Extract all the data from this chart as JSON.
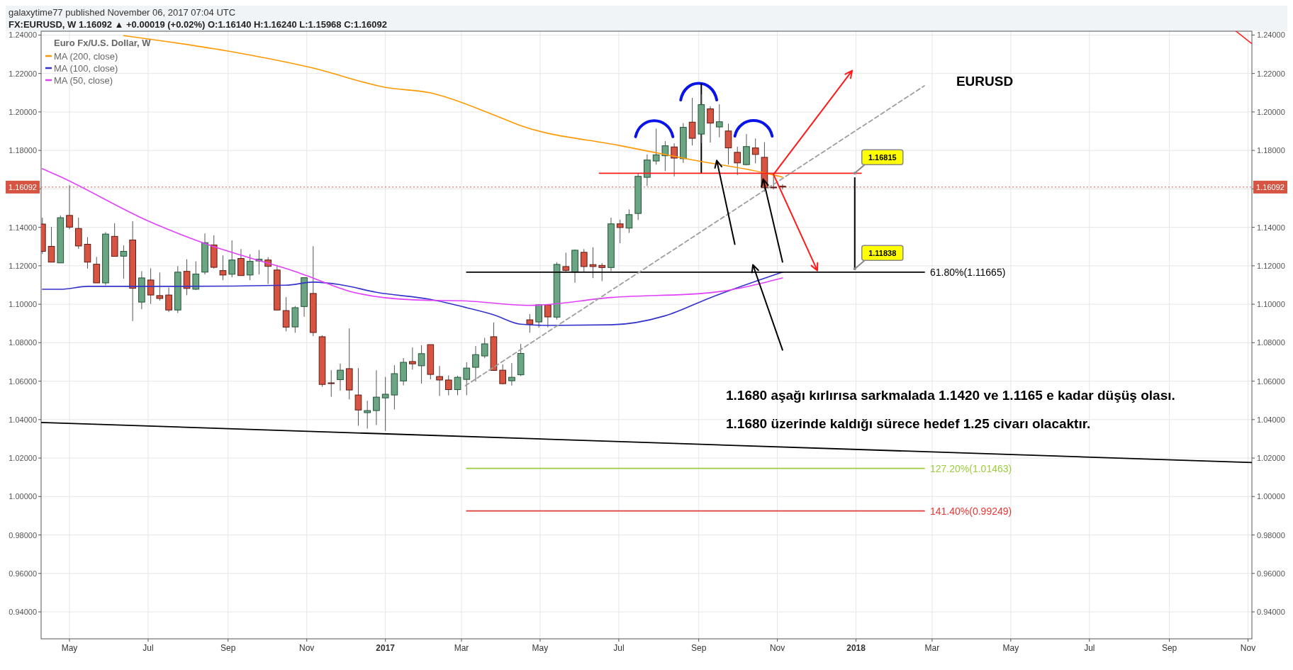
{
  "chart_data": {
    "type": "candlestick",
    "title": "galaxytime77 published November 06, 2017 07:04 UTC",
    "subtitle": "FX:EURUSD, W  1.16092 ▲ +0.00019 (+0.02%)  O:1.16140  H:1.16240  L:1.15968  C:1.16092",
    "legend_title": "Euro Fx/U.S. Dollar, W",
    "x": [
      "2016-04-10",
      "2016-04-17",
      "2016-04-24",
      "2016-05-01",
      "2016-05-08",
      "2016-05-15",
      "2016-05-22",
      "2016-05-29",
      "2016-06-05",
      "2016-06-12",
      "2016-06-19",
      "2016-06-26",
      "2016-07-03",
      "2016-07-10",
      "2016-07-17",
      "2016-07-24",
      "2016-07-31",
      "2016-08-07",
      "2016-08-14",
      "2016-08-21",
      "2016-08-28",
      "2016-09-04",
      "2016-09-11",
      "2016-09-18",
      "2016-09-25",
      "2016-10-02",
      "2016-10-09",
      "2016-10-16",
      "2016-10-23",
      "2016-10-30",
      "2016-11-06",
      "2016-11-13",
      "2016-11-20",
      "2016-11-27",
      "2016-12-04",
      "2016-12-11",
      "2016-12-18",
      "2016-12-25",
      "2017-01-01",
      "2017-01-08",
      "2017-01-15",
      "2017-01-22",
      "2017-01-29",
      "2017-02-05",
      "2017-02-12",
      "2017-02-19",
      "2017-02-26",
      "2017-03-05",
      "2017-03-12",
      "2017-03-19",
      "2017-03-26",
      "2017-04-02",
      "2017-04-09",
      "2017-04-16",
      "2017-04-23",
      "2017-04-30",
      "2017-05-07",
      "2017-05-14",
      "2017-05-21",
      "2017-05-28",
      "2017-06-04",
      "2017-06-11",
      "2017-06-18",
      "2017-06-25",
      "2017-07-02",
      "2017-07-09",
      "2017-07-16",
      "2017-07-23",
      "2017-07-30",
      "2017-08-06",
      "2017-08-13",
      "2017-08-20",
      "2017-08-27",
      "2017-09-03",
      "2017-09-10",
      "2017-09-17",
      "2017-09-24",
      "2017-10-01",
      "2017-10-08",
      "2017-10-15",
      "2017-10-22",
      "2017-10-29",
      "2017-11-05"
    ],
    "ohlc": [
      [
        1.1417,
        1.145,
        1.1262,
        1.1275
      ],
      [
        1.1301,
        1.1402,
        1.1219,
        1.1219
      ],
      [
        1.1215,
        1.1462,
        1.1215,
        1.145
      ],
      [
        1.1462,
        1.1619,
        1.139,
        1.1401
      ],
      [
        1.1394,
        1.145,
        1.1288,
        1.1303
      ],
      [
        1.1312,
        1.1349,
        1.1185,
        1.1219
      ],
      [
        1.1208,
        1.1246,
        1.1111,
        1.1111
      ],
      [
        1.1111,
        1.1375,
        1.1099,
        1.1365
      ],
      [
        1.1353,
        1.1421,
        1.1249,
        1.1249
      ],
      [
        1.125,
        1.1306,
        1.1133,
        1.1275
      ],
      [
        1.1334,
        1.1432,
        1.0913,
        1.1083
      ],
      [
        1.1011,
        1.1172,
        1.0974,
        1.1137
      ],
      [
        1.1126,
        1.1187,
        1.1002,
        1.1048
      ],
      [
        1.1045,
        1.1165,
        1.1019,
        1.103
      ],
      [
        1.1048,
        1.1087,
        1.0959,
        1.097
      ],
      [
        1.097,
        1.1198,
        1.0954,
        1.1167
      ],
      [
        1.1171,
        1.1234,
        1.1047,
        1.1082
      ],
      [
        1.1078,
        1.1223,
        1.1074,
        1.1157
      ],
      [
        1.1167,
        1.1368,
        1.1155,
        1.132
      ],
      [
        1.1308,
        1.1359,
        1.1185,
        1.1192
      ],
      [
        1.1175,
        1.1254,
        1.1125,
        1.1152
      ],
      [
        1.1156,
        1.1332,
        1.114,
        1.123
      ],
      [
        1.1238,
        1.1287,
        1.1149,
        1.1149
      ],
      [
        1.1152,
        1.126,
        1.1125,
        1.1223
      ],
      [
        1.1225,
        1.1282,
        1.1155,
        1.1234
      ],
      [
        1.123,
        1.1245,
        1.1105,
        1.1197
      ],
      [
        1.1178,
        1.1204,
        1.097,
        1.097
      ],
      [
        1.0967,
        1.1037,
        1.0859,
        1.0881
      ],
      [
        1.0882,
        1.0991,
        1.0852,
        1.0982
      ],
      [
        1.0988,
        1.1138,
        1.0935,
        1.1138
      ],
      [
        1.1056,
        1.1302,
        1.0834,
        1.0853
      ],
      [
        1.0831,
        1.0838,
        1.0571,
        1.0583
      ],
      [
        1.0591,
        1.0657,
        1.0519,
        1.059
      ],
      [
        1.0608,
        1.0691,
        1.0551,
        1.0657
      ],
      [
        1.0665,
        1.0874,
        1.0505,
        1.0554
      ],
      [
        1.0528,
        1.0668,
        1.0368,
        1.045
      ],
      [
        1.0436,
        1.0498,
        1.0353,
        1.0447
      ],
      [
        1.0447,
        1.0656,
        1.0372,
        1.0517
      ],
      [
        1.0513,
        1.0622,
        1.0342,
        1.0532
      ],
      [
        1.0528,
        1.0683,
        1.0453,
        1.0639
      ],
      [
        1.0601,
        1.072,
        1.0578,
        1.0698
      ],
      [
        1.0702,
        1.0775,
        1.066,
        1.069
      ],
      [
        1.068,
        1.0787,
        1.0587,
        1.0743
      ],
      [
        1.079,
        1.079,
        1.0609,
        1.0635
      ],
      [
        1.0624,
        1.0679,
        1.0523,
        1.0606
      ],
      [
        1.0606,
        1.063,
        1.0526,
        1.0556
      ],
      [
        1.0556,
        1.0628,
        1.0527,
        1.062
      ],
      [
        1.0609,
        1.0698,
        1.0527,
        1.0668
      ],
      [
        1.0672,
        1.0783,
        1.0598,
        1.0738
      ],
      [
        1.0731,
        1.0825,
        1.072,
        1.0794
      ],
      [
        1.0831,
        1.0905,
        1.0656,
        1.0656
      ],
      [
        1.0657,
        1.0687,
        1.0583,
        1.0587
      ],
      [
        1.0602,
        1.0694,
        1.0577,
        1.062
      ],
      [
        1.0633,
        1.0794,
        1.0626,
        1.0744
      ],
      [
        1.0919,
        1.0949,
        1.0852,
        1.0896
      ],
      [
        1.0908,
        1.1,
        1.0878,
        1.0997
      ],
      [
        1.0997,
        1.1,
        1.088,
        1.0934
      ],
      [
        1.0933,
        1.1218,
        1.092,
        1.1207
      ],
      [
        1.1196,
        1.1268,
        1.117,
        1.1176
      ],
      [
        1.1167,
        1.1285,
        1.1112,
        1.1281
      ],
      [
        1.127,
        1.1287,
        1.117,
        1.1196
      ],
      [
        1.1206,
        1.1296,
        1.1136,
        1.1196
      ],
      [
        1.1202,
        1.1214,
        1.112,
        1.1191
      ],
      [
        1.1191,
        1.145,
        1.1172,
        1.1418
      ],
      [
        1.1418,
        1.144,
        1.1317,
        1.1399
      ],
      [
        1.1396,
        1.1493,
        1.1371,
        1.1466
      ],
      [
        1.1472,
        1.1681,
        1.1438,
        1.1665
      ],
      [
        1.166,
        1.1779,
        1.1615,
        1.175
      ],
      [
        1.1745,
        1.1913,
        1.1726,
        1.1777
      ],
      [
        1.1772,
        1.1848,
        1.1693,
        1.1824
      ],
      [
        1.1818,
        1.1837,
        1.1665,
        1.176
      ],
      [
        1.1757,
        1.1942,
        1.1735,
        1.192
      ],
      [
        1.1947,
        1.2073,
        1.1826,
        1.1863
      ],
      [
        1.1885,
        1.2092,
        1.1838,
        1.2038
      ],
      [
        1.2016,
        1.203,
        1.1841,
        1.1942
      ],
      [
        1.1922,
        1.204,
        1.1868,
        1.1949
      ],
      [
        1.1901,
        1.1939,
        1.1726,
        1.1813
      ],
      [
        1.179,
        1.1819,
        1.1672,
        1.1735
      ],
      [
        1.1726,
        1.1885,
        1.1722,
        1.182
      ],
      [
        1.1813,
        1.1862,
        1.1733,
        1.1779
      ],
      [
        1.1764,
        1.1843,
        1.1585,
        1.1606
      ],
      [
        1.1609,
        1.1669,
        1.1597,
        1.1608
      ],
      [
        1.1614,
        1.1624,
        1.15968,
        1.16092
      ]
    ],
    "series": [
      {
        "type": "line",
        "name": "MA (200, close)",
        "color": "#ff9800",
        "x": [
          "2016-06-12",
          "2016-09-04",
          "2016-11-06",
          "2017-01-01",
          "2017-02-05",
          "2017-03-26",
          "2017-04-16",
          "2017-07-02",
          "2017-08-27",
          "2017-10-22",
          "2017-11-05"
        ],
        "values": [
          1.2397,
          1.2313,
          1.2228,
          1.2128,
          1.2099,
          1.1985,
          1.1929,
          1.1825,
          1.1751,
          1.1683,
          1.1661
        ]
      },
      {
        "type": "line",
        "name": "MA (100, close)",
        "color": "#3333cc",
        "x": [
          "2016-04-10",
          "2016-04-24",
          "2016-05-15",
          "2016-07-24",
          "2016-10-16",
          "2016-11-06",
          "2016-11-27",
          "2016-12-25",
          "2017-02-05",
          "2017-03-05",
          "2017-03-26",
          "2017-04-16",
          "2017-05-07",
          "2017-06-25",
          "2017-08-06",
          "2017-09-10",
          "2017-11-05"
        ],
        "values": [
          1.1078,
          1.1078,
          1.1093,
          1.1093,
          1.1099,
          1.1115,
          1.1102,
          1.1062,
          1.1025,
          1.0982,
          1.0945,
          1.0896,
          1.089,
          1.0893,
          1.094,
          1.1034,
          1.1167
        ]
      },
      {
        "type": "line",
        "name": "MA (50, close)",
        "color": "#e040fb",
        "x": [
          "2016-04-10",
          "2016-04-24",
          "2016-07-03",
          "2016-08-14",
          "2016-09-18",
          "2016-10-23",
          "2016-11-06",
          "2016-12-04",
          "2017-01-22",
          "2017-03-05",
          "2017-04-23",
          "2017-06-25",
          "2017-09-10",
          "2017-11-05"
        ],
        "values": [
          1.1705,
          1.1663,
          1.1427,
          1.1316,
          1.1241,
          1.117,
          1.1136,
          1.1068,
          1.1023,
          1.1017,
          1.0994,
          1.1035,
          1.106,
          1.1137
        ]
      },
      {
        "type": "line",
        "color": "#ff1a1a",
        "x": [
          "2017-06-16",
          "2018-01-05"
        ],
        "values": [
          1.16815,
          1.16815
        ]
      },
      {
        "type": "line",
        "name": "61.80%(1.11665)",
        "color": "#000000",
        "x": [
          "2017-03-05",
          "2018-02-23"
        ],
        "values": [
          1.11665,
          1.11665
        ]
      },
      {
        "type": "line",
        "name": "127.20%(1.01463)",
        "color": "#9ccc3c",
        "x": [
          "2017-03-05",
          "2018-02-23"
        ],
        "values": [
          1.01463,
          1.01463
        ]
      },
      {
        "type": "line",
        "name": "141.40%(0.99249)",
        "color": "#e53935",
        "x": [
          "2017-03-05",
          "2018-02-23"
        ],
        "values": [
          0.99249,
          0.99249
        ]
      },
      {
        "type": "line",
        "color": "#9e9e9e",
        "line_style": "dashed",
        "x": [
          "2017-03-04",
          "2018-02-23"
        ],
        "values": [
          1.0576,
          1.2136
        ]
      },
      {
        "type": "line",
        "color": "#000000",
        "x": [
          "2016-04-09",
          "2018-11-04"
        ],
        "values": [
          1.0385,
          1.0177
        ]
      }
    ],
    "annotations": [
      "EURUSD",
      "1.1680 aşağı kırlırısa sarkmalada 1.1420 ve 1.1165 e kadar düşüş olası.",
      "1.1680 üzerinde kaldığı sürece hedef 1.25 civarı olacaktır.",
      {
        "text": "1.16815",
        "x": "2017-12-31",
        "y": 1.16815
      },
      {
        "text": "1.11838",
        "x": "2017-12-31",
        "y": 1.11838
      }
    ],
    "ref_lines": [
      {
        "axis": "y",
        "value": 1.16092,
        "label": "1.16092",
        "color": "#d75442",
        "line_style": "dotted"
      }
    ],
    "xlim": [
      "2016-04-09",
      "2018-11-04"
    ],
    "xticks": [
      {
        "value": "2016-05-01",
        "label": "May"
      },
      {
        "value": "2016-07-01",
        "label": "Jul"
      },
      {
        "value": "2016-09-01",
        "label": "Sep"
      },
      {
        "value": "2016-11-01",
        "label": "Nov"
      },
      {
        "value": "2017-01-01",
        "label": "2017"
      },
      {
        "value": "2017-03-01",
        "label": "Mar"
      },
      {
        "value": "2017-05-01",
        "label": "May"
      },
      {
        "value": "2017-07-01",
        "label": "Jul"
      },
      {
        "value": "2017-09-01",
        "label": "Sep"
      },
      {
        "value": "2017-11-01",
        "label": "Nov"
      },
      {
        "value": "2018-01-01",
        "label": "2018"
      },
      {
        "value": "2018-03-01",
        "label": "Mar"
      },
      {
        "value": "2018-05-01",
        "label": "May"
      },
      {
        "value": "2018-07-01",
        "label": "Jul"
      },
      {
        "value": "2018-09-01",
        "label": "Sep"
      },
      {
        "value": "2018-11-01",
        "label": "Nov"
      }
    ],
    "ylim": [
      0.926,
      1.242
    ],
    "yticks": [
      {
        "value": 0.94,
        "label": "0.94000"
      },
      {
        "value": 0.96,
        "label": "0.96000"
      },
      {
        "value": 0.98,
        "label": "0.98000"
      },
      {
        "value": 1.0,
        "label": "1.00000"
      },
      {
        "value": 1.02,
        "label": "1.02000"
      },
      {
        "value": 1.04,
        "label": "1.04000"
      },
      {
        "value": 1.06,
        "label": "1.06000"
      },
      {
        "value": 1.08,
        "label": "1.08000"
      },
      {
        "value": 1.1,
        "label": "1.10000"
      },
      {
        "value": 1.12,
        "label": "1.12000"
      },
      {
        "value": 1.14,
        "label": "1.14000"
      },
      {
        "value": 1.16,
        "label": null
      },
      {
        "value": 1.18,
        "label": "1.18000"
      },
      {
        "value": 1.2,
        "label": "1.20000"
      },
      {
        "value": 1.22,
        "label": "1.22000"
      },
      {
        "value": 1.24,
        "label": "1.24000"
      }
    ],
    "y2lim": [
      0.926,
      1.242
    ],
    "y2ticks": [
      {
        "value": 0.94,
        "label": "0.94000"
      },
      {
        "value": 0.96,
        "label": "0.96000"
      },
      {
        "value": 0.98,
        "label": "0.98000"
      },
      {
        "value": 1.0,
        "label": "1.00000"
      },
      {
        "value": 1.02,
        "label": "1.02000"
      },
      {
        "value": 1.04,
        "label": "1.04000"
      },
      {
        "value": 1.06,
        "label": "1.06000"
      },
      {
        "value": 1.08,
        "label": "1.08000"
      },
      {
        "value": 1.1,
        "label": "1.10000"
      },
      {
        "value": 1.12,
        "label": "1.12000"
      },
      {
        "value": 1.14,
        "label": "1.14000"
      },
      {
        "value": 1.16,
        "label": null
      },
      {
        "value": 1.18,
        "label": "1.18000"
      },
      {
        "value": 1.2,
        "label": "1.20000"
      },
      {
        "value": 1.22,
        "label": "1.22000"
      },
      {
        "value": 1.24,
        "label": "1.24000"
      }
    ],
    "grid": true,
    "legend": "top left",
    "marker": "none"
  }
}
